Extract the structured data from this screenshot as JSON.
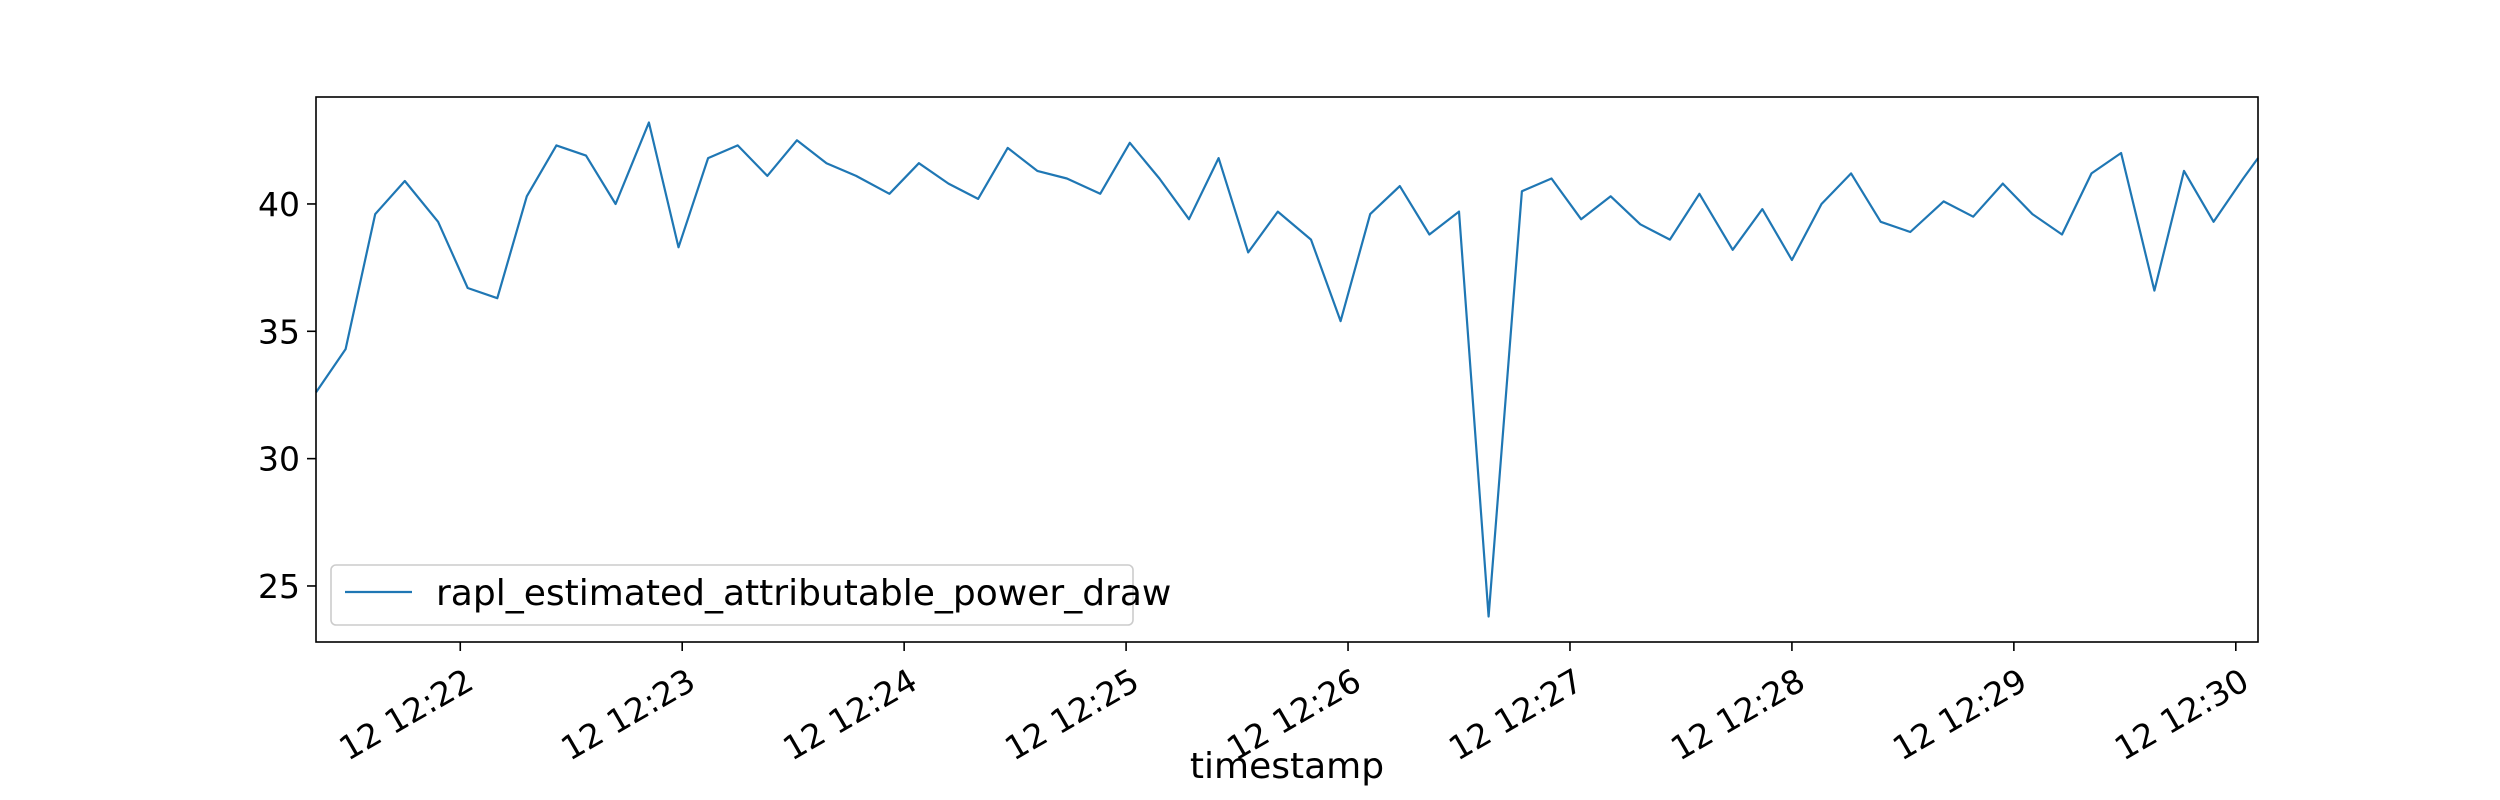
{
  "chart_data": {
    "type": "line",
    "title": "",
    "xlabel": "timestamp",
    "ylabel": "",
    "xlim": [
      "12:21:21",
      "12:30:06"
    ],
    "ylim": [
      22.8,
      44.2
    ],
    "grid": false,
    "legend_position": "lower-left",
    "x_ticks": [
      "12 12:22",
      "12 12:23",
      "12 12:24",
      "12 12:25",
      "12 12:26",
      "12 12:27",
      "12 12:28",
      "12 12:29",
      "12 12:30"
    ],
    "y_ticks": [
      "25",
      "30",
      "35",
      "40"
    ],
    "series": [
      {
        "name": "rapl_estimated_attributable_power_draw",
        "color": "#1f77b4",
        "x": [
          "12:21:21",
          "12:21:29",
          "12:21:37",
          "12:21:45",
          "12:21:54",
          "12:22:02",
          "12:22:10",
          "12:22:18",
          "12:22:26",
          "12:22:34",
          "12:22:42",
          "12:22:51",
          "12:22:59",
          "12:23:07",
          "12:23:15",
          "12:23:23",
          "12:23:31",
          "12:23:39",
          "12:23:47",
          "12:23:56",
          "12:24:04",
          "12:24:12",
          "12:24:20",
          "12:24:28",
          "12:24:36",
          "12:24:44",
          "12:24:53",
          "12:25:01",
          "12:25:09",
          "12:25:17",
          "12:25:25",
          "12:25:33",
          "12:25:41",
          "12:25:50",
          "12:25:58",
          "12:26:06",
          "12:26:14",
          "12:26:22",
          "12:26:30",
          "12:26:38",
          "12:26:47",
          "12:26:55",
          "12:27:03",
          "12:27:11",
          "12:27:19",
          "12:27:27",
          "12:27:35",
          "12:27:44",
          "12:27:52",
          "12:28:00",
          "12:28:08",
          "12:28:16",
          "12:28:24",
          "12:28:32",
          "12:28:41",
          "12:28:49",
          "12:28:57",
          "12:29:05",
          "12:29:13",
          "12:29:21",
          "12:29:29",
          "12:29:38",
          "12:29:46",
          "12:29:54",
          "12:30:02",
          "12:30:06"
        ],
        "values": [
          32.6,
          34.3,
          39.6,
          40.9,
          39.3,
          36.7,
          36.3,
          40.3,
          42.3,
          41.9,
          40.0,
          43.2,
          38.3,
          41.8,
          42.3,
          41.1,
          42.5,
          41.6,
          41.1,
          40.4,
          41.6,
          40.8,
          40.2,
          42.2,
          41.3,
          41.0,
          40.4,
          42.4,
          41.0,
          39.4,
          41.8,
          38.1,
          39.7,
          38.6,
          35.4,
          39.6,
          40.7,
          38.8,
          39.7,
          23.8,
          40.5,
          41.0,
          39.4,
          40.3,
          39.2,
          38.6,
          40.4,
          38.2,
          39.8,
          37.8,
          40.0,
          41.2,
          39.3,
          38.9,
          40.1,
          39.5,
          40.8,
          39.6,
          38.8,
          41.2,
          42.0,
          36.6,
          41.3,
          39.3,
          41.0,
          41.8
        ]
      }
    ]
  }
}
